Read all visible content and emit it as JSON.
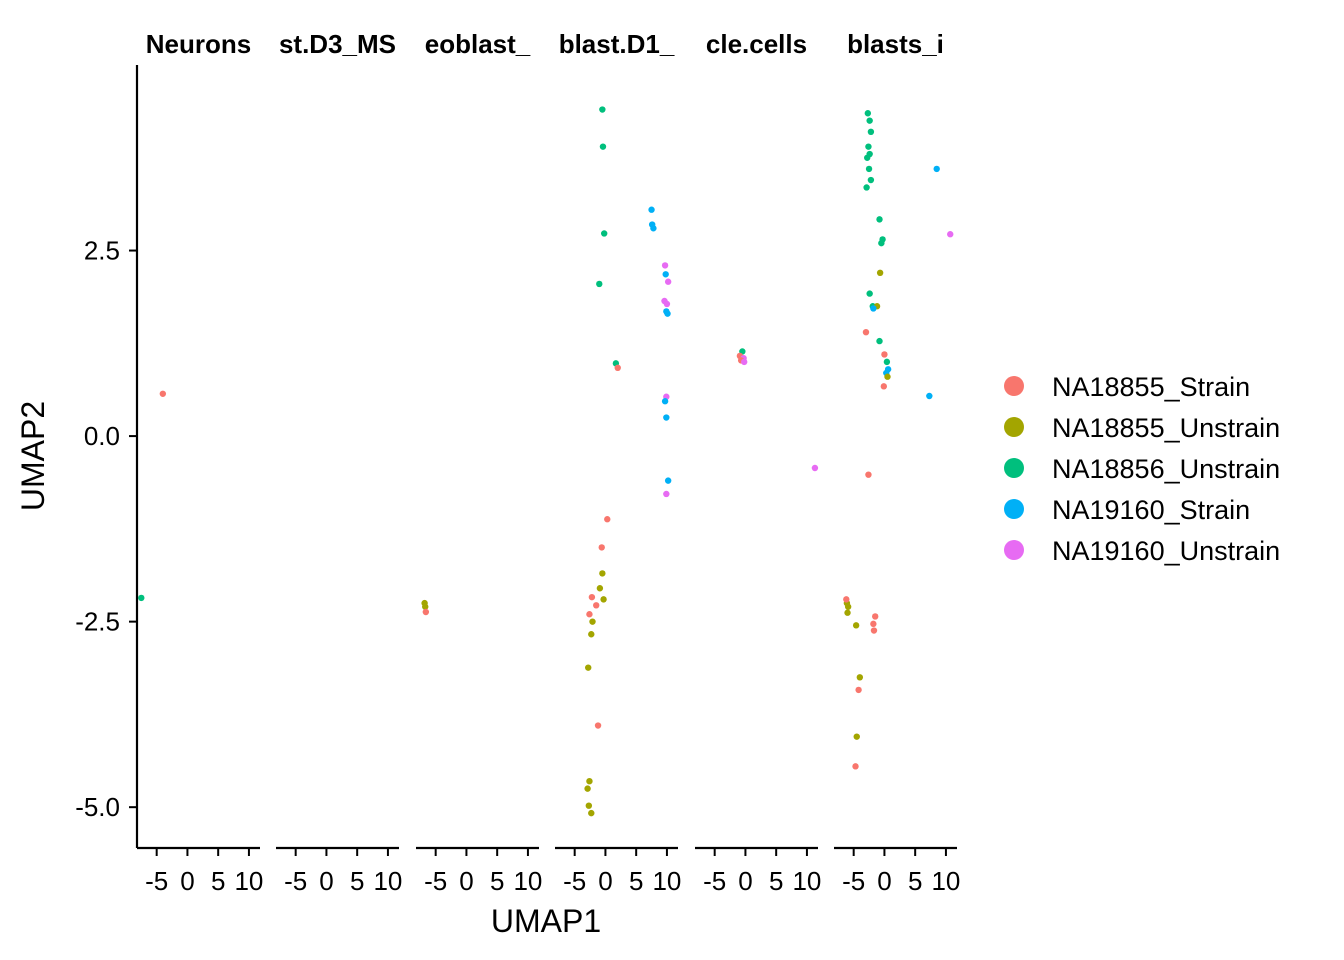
{
  "chart_data": {
    "type": "scatter",
    "xlabel": "UMAP1",
    "ylabel": "UMAP2",
    "ylim": [
      -5.55,
      5.0
    ],
    "xlim": [
      -8.2,
      11.8
    ],
    "yticks": [
      {
        "value": 2.5,
        "label": "2.5"
      },
      {
        "value": 0.0,
        "label": "0.0"
      },
      {
        "value": -2.5,
        "label": "-2.5"
      },
      {
        "value": -5.0,
        "label": "-5.0"
      }
    ],
    "xticks": [
      {
        "value": -5,
        "label": "-5"
      },
      {
        "value": 0,
        "label": "0"
      },
      {
        "value": 5,
        "label": "5"
      },
      {
        "value": 10,
        "label": "10"
      }
    ],
    "grid": false,
    "legend_position": "right",
    "facets": [
      {
        "label": "Neurons"
      },
      {
        "label": "st.D3_MS"
      },
      {
        "label": "eoblast_"
      },
      {
        "label": "blast.D1_"
      },
      {
        "label": "cle.cells"
      },
      {
        "label": "blasts_i"
      }
    ],
    "series": [
      {
        "name": "NA18855_Strain",
        "color": "#F8766D"
      },
      {
        "name": "NA18855_Unstrain",
        "color": "#A3A500"
      },
      {
        "name": "NA18856_Unstrain",
        "color": "#00BF7D"
      },
      {
        "name": "NA19160_Strain",
        "color": "#00B0F6"
      },
      {
        "name": "NA19160_Unstrain",
        "color": "#E76BF3"
      }
    ],
    "points": [
      {
        "f": 0,
        "s": 0,
        "x": -4.0,
        "y": 0.57
      },
      {
        "f": 0,
        "s": 2,
        "x": -7.5,
        "y": -2.18
      },
      {
        "f": 2,
        "s": 1,
        "x": -6.8,
        "y": -2.25
      },
      {
        "f": 2,
        "s": 1,
        "x": -6.7,
        "y": -2.3
      },
      {
        "f": 2,
        "s": 0,
        "x": -6.6,
        "y": -2.37
      },
      {
        "f": 3,
        "s": 2,
        "x": -0.5,
        "y": 4.4
      },
      {
        "f": 3,
        "s": 2,
        "x": -0.4,
        "y": 3.9
      },
      {
        "f": 3,
        "s": 2,
        "x": -0.2,
        "y": 2.73
      },
      {
        "f": 3,
        "s": 2,
        "x": -1.0,
        "y": 2.05
      },
      {
        "f": 3,
        "s": 2,
        "x": 1.7,
        "y": 0.98
      },
      {
        "f": 3,
        "s": 0,
        "x": 2.0,
        "y": 0.92
      },
      {
        "f": 3,
        "s": 0,
        "x": 0.3,
        "y": -1.12
      },
      {
        "f": 3,
        "s": 0,
        "x": -0.6,
        "y": -1.5
      },
      {
        "f": 3,
        "s": 1,
        "x": -0.5,
        "y": -1.85
      },
      {
        "f": 3,
        "s": 1,
        "x": -0.9,
        "y": -2.05
      },
      {
        "f": 3,
        "s": 1,
        "x": -0.3,
        "y": -2.2
      },
      {
        "f": 3,
        "s": 0,
        "x": -2.2,
        "y": -2.17
      },
      {
        "f": 3,
        "s": 0,
        "x": -1.5,
        "y": -2.28
      },
      {
        "f": 3,
        "s": 0,
        "x": -2.6,
        "y": -2.4
      },
      {
        "f": 3,
        "s": 1,
        "x": -2.1,
        "y": -2.5
      },
      {
        "f": 3,
        "s": 1,
        "x": -2.3,
        "y": -2.67
      },
      {
        "f": 3,
        "s": 1,
        "x": -2.8,
        "y": -3.12
      },
      {
        "f": 3,
        "s": 0,
        "x": -1.2,
        "y": -3.9
      },
      {
        "f": 3,
        "s": 1,
        "x": -2.6,
        "y": -4.65
      },
      {
        "f": 3,
        "s": 1,
        "x": -2.9,
        "y": -4.75
      },
      {
        "f": 3,
        "s": 1,
        "x": -2.7,
        "y": -4.98
      },
      {
        "f": 3,
        "s": 1,
        "x": -2.3,
        "y": -5.08
      },
      {
        "f": 3,
        "s": 3,
        "x": 7.5,
        "y": 3.05
      },
      {
        "f": 3,
        "s": 3,
        "x": 7.6,
        "y": 2.85
      },
      {
        "f": 3,
        "s": 3,
        "x": 7.8,
        "y": 2.8
      },
      {
        "f": 3,
        "s": 4,
        "x": 9.7,
        "y": 2.3
      },
      {
        "f": 3,
        "s": 3,
        "x": 9.8,
        "y": 2.18
      },
      {
        "f": 3,
        "s": 4,
        "x": 10.2,
        "y": 2.08
      },
      {
        "f": 3,
        "s": 4,
        "x": 9.6,
        "y": 1.82
      },
      {
        "f": 3,
        "s": 4,
        "x": 10.0,
        "y": 1.78
      },
      {
        "f": 3,
        "s": 3,
        "x": 9.9,
        "y": 1.68
      },
      {
        "f": 3,
        "s": 3,
        "x": 10.1,
        "y": 1.65
      },
      {
        "f": 3,
        "s": 4,
        "x": 9.9,
        "y": 0.53
      },
      {
        "f": 3,
        "s": 3,
        "x": 9.7,
        "y": 0.47
      },
      {
        "f": 3,
        "s": 3,
        "x": 9.9,
        "y": 0.25
      },
      {
        "f": 3,
        "s": 3,
        "x": 10.2,
        "y": -0.6
      },
      {
        "f": 3,
        "s": 4,
        "x": 9.9,
        "y": -0.78
      },
      {
        "f": 4,
        "s": 2,
        "x": -0.5,
        "y": 1.14
      },
      {
        "f": 4,
        "s": 0,
        "x": -0.9,
        "y": 1.08
      },
      {
        "f": 4,
        "s": 4,
        "x": -0.3,
        "y": 1.05
      },
      {
        "f": 4,
        "s": 0,
        "x": -0.7,
        "y": 1.02
      },
      {
        "f": 4,
        "s": 4,
        "x": -0.2,
        "y": 1.0
      },
      {
        "f": 4,
        "s": 4,
        "x": 11.3,
        "y": -0.43
      },
      {
        "f": 5,
        "s": 2,
        "x": -2.7,
        "y": 4.35
      },
      {
        "f": 5,
        "s": 2,
        "x": -2.4,
        "y": 4.25
      },
      {
        "f": 5,
        "s": 2,
        "x": -2.2,
        "y": 4.1
      },
      {
        "f": 5,
        "s": 2,
        "x": -2.6,
        "y": 3.9
      },
      {
        "f": 5,
        "s": 2,
        "x": -2.8,
        "y": 3.75
      },
      {
        "f": 5,
        "s": 2,
        "x": -2.4,
        "y": 3.8
      },
      {
        "f": 5,
        "s": 2,
        "x": -2.5,
        "y": 3.6
      },
      {
        "f": 5,
        "s": 2,
        "x": -2.2,
        "y": 3.45
      },
      {
        "f": 5,
        "s": 2,
        "x": -2.9,
        "y": 3.35
      },
      {
        "f": 5,
        "s": 2,
        "x": -0.8,
        "y": 2.92
      },
      {
        "f": 5,
        "s": 2,
        "x": -0.3,
        "y": 2.65
      },
      {
        "f": 5,
        "s": 2,
        "x": -0.5,
        "y": 2.6
      },
      {
        "f": 5,
        "s": 1,
        "x": -0.7,
        "y": 2.2
      },
      {
        "f": 5,
        "s": 2,
        "x": -2.4,
        "y": 1.92
      },
      {
        "f": 5,
        "s": 2,
        "x": -1.9,
        "y": 1.75
      },
      {
        "f": 5,
        "s": 1,
        "x": -1.2,
        "y": 1.75
      },
      {
        "f": 5,
        "s": 3,
        "x": -1.8,
        "y": 1.72
      },
      {
        "f": 5,
        "s": 0,
        "x": -3.0,
        "y": 1.4
      },
      {
        "f": 5,
        "s": 2,
        "x": -0.8,
        "y": 1.28
      },
      {
        "f": 5,
        "s": 0,
        "x": 0.0,
        "y": 1.1
      },
      {
        "f": 5,
        "s": 2,
        "x": 0.4,
        "y": 1.0
      },
      {
        "f": 5,
        "s": 3,
        "x": 0.6,
        "y": 0.9
      },
      {
        "f": 5,
        "s": 3,
        "x": 0.3,
        "y": 0.85
      },
      {
        "f": 5,
        "s": 1,
        "x": 0.5,
        "y": 0.8
      },
      {
        "f": 5,
        "s": 0,
        "x": -0.1,
        "y": 0.67
      },
      {
        "f": 5,
        "s": 0,
        "x": -2.6,
        "y": -0.52
      },
      {
        "f": 5,
        "s": 1,
        "x": -6.1,
        "y": -2.25
      },
      {
        "f": 5,
        "s": 1,
        "x": -5.9,
        "y": -2.3
      },
      {
        "f": 5,
        "s": 1,
        "x": -6.0,
        "y": -2.38
      },
      {
        "f": 5,
        "s": 0,
        "x": -6.2,
        "y": -2.2
      },
      {
        "f": 5,
        "s": 0,
        "x": -1.5,
        "y": -2.43
      },
      {
        "f": 5,
        "s": 0,
        "x": -1.8,
        "y": -2.53
      },
      {
        "f": 5,
        "s": 0,
        "x": -1.7,
        "y": -2.62
      },
      {
        "f": 5,
        "s": 1,
        "x": -4.6,
        "y": -2.55
      },
      {
        "f": 5,
        "s": 1,
        "x": -4.0,
        "y": -3.25
      },
      {
        "f": 5,
        "s": 0,
        "x": -4.2,
        "y": -3.42
      },
      {
        "f": 5,
        "s": 1,
        "x": -4.5,
        "y": -4.05
      },
      {
        "f": 5,
        "s": 0,
        "x": -4.7,
        "y": -4.45
      },
      {
        "f": 5,
        "s": 3,
        "x": 8.5,
        "y": 3.6
      },
      {
        "f": 5,
        "s": 4,
        "x": 10.7,
        "y": 2.72
      },
      {
        "f": 5,
        "s": 3,
        "x": 7.3,
        "y": 0.54
      }
    ]
  }
}
